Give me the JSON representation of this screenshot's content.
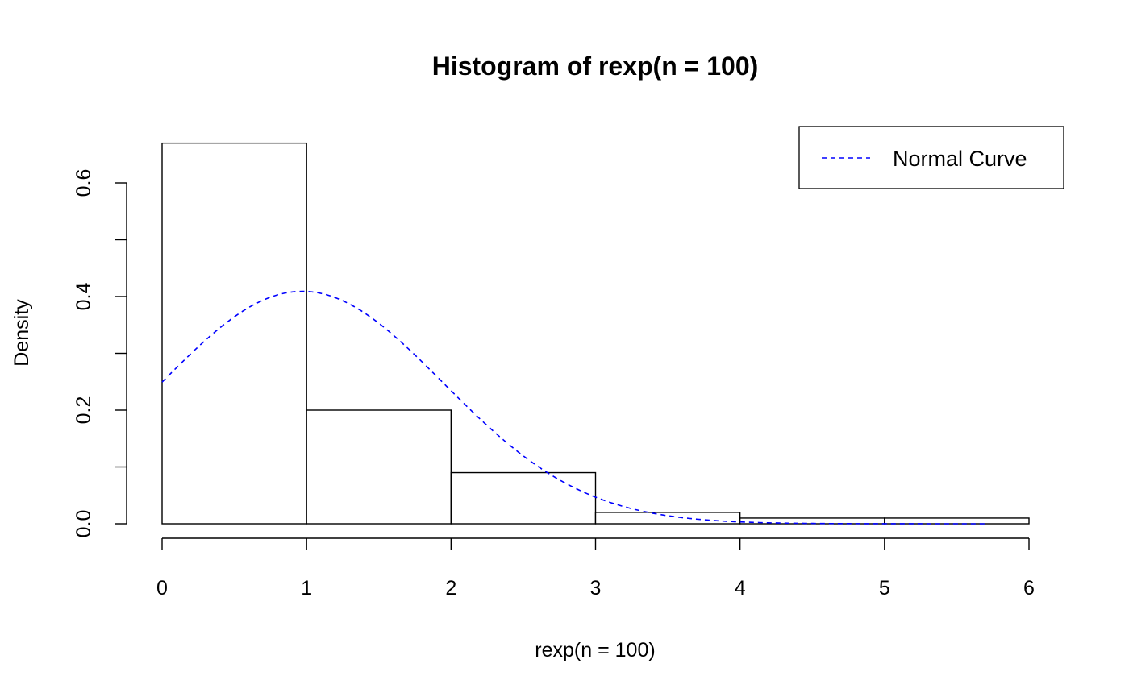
{
  "chart_data": {
    "type": "histogram",
    "title": "Histogram of rexp(n = 100)",
    "xlabel": "rexp(n = 100)",
    "ylabel": "Density",
    "xlim": [
      0,
      6
    ],
    "ylim": [
      0,
      0.6
    ],
    "x_ticks": [
      "0",
      "1",
      "2",
      "3",
      "4",
      "5",
      "6"
    ],
    "y_ticks": [
      "0.0",
      "0.2",
      "0.4",
      "0.6"
    ],
    "bins": [
      {
        "start": 0,
        "end": 1,
        "density": 0.67
      },
      {
        "start": 1,
        "end": 2,
        "density": 0.2
      },
      {
        "start": 2,
        "end": 3,
        "density": 0.09
      },
      {
        "start": 3,
        "end": 4,
        "density": 0.02
      },
      {
        "start": 4,
        "end": 5,
        "density": 0.01
      },
      {
        "start": 5,
        "end": 6,
        "density": 0.01
      }
    ],
    "overlay": {
      "type": "normal_curve",
      "name": "Normal Curve",
      "mean": 0.97,
      "sd": 0.975,
      "x_range": [
        0,
        5.7
      ],
      "color": "#0000ff",
      "line_style": "dashed"
    },
    "legend": {
      "position": "top-right",
      "entries": [
        "Normal Curve"
      ]
    },
    "grid": false
  }
}
